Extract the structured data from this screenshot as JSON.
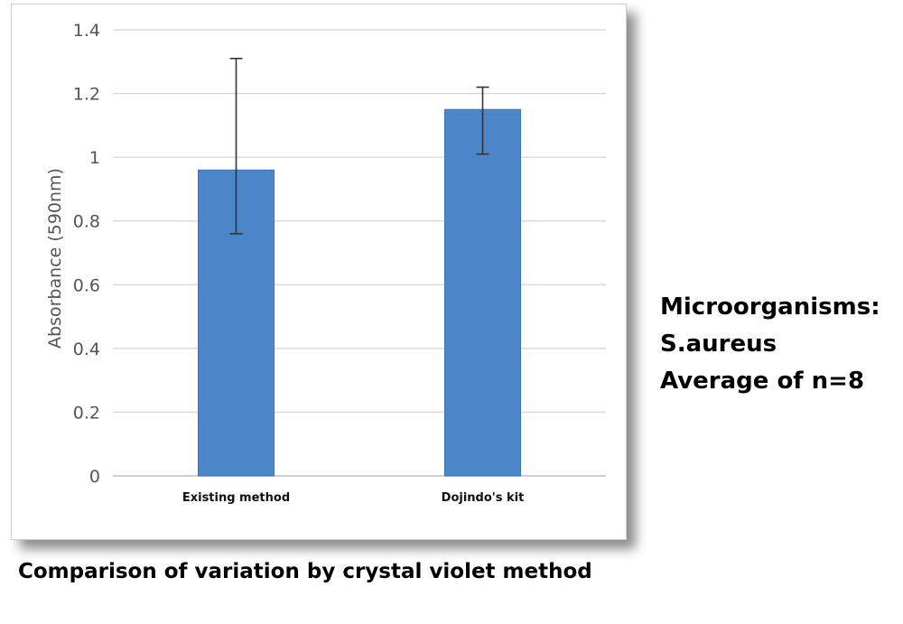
{
  "chart_data": {
    "type": "bar",
    "categories": [
      "Existing method",
      "Dojindo's kit"
    ],
    "values": [
      0.96,
      1.15
    ],
    "error_bars": [
      {
        "low": 0.76,
        "high": 1.31
      },
      {
        "low": 1.01,
        "high": 1.22
      }
    ],
    "ylabel": "Absorbance (590nm)",
    "xlabel": "",
    "ylim": [
      0,
      1.4
    ],
    "yticks": [
      "0",
      "0.2",
      "0.4",
      "0.6",
      "0.8",
      "1",
      "1.2",
      "1.4"
    ],
    "grid": true,
    "legend": "none",
    "colors": {
      "bar": "#4a86c8",
      "bar_edge": "#3d74b3",
      "grid": "#dcd3dc",
      "error_bar": "#333333",
      "axis_text": "#555555"
    }
  },
  "side_note": {
    "line1": "Microorganisms:",
    "line2": "S.aureus",
    "line3": "Average of n=8"
  },
  "caption": "Comparison of variation by crystal violet method"
}
